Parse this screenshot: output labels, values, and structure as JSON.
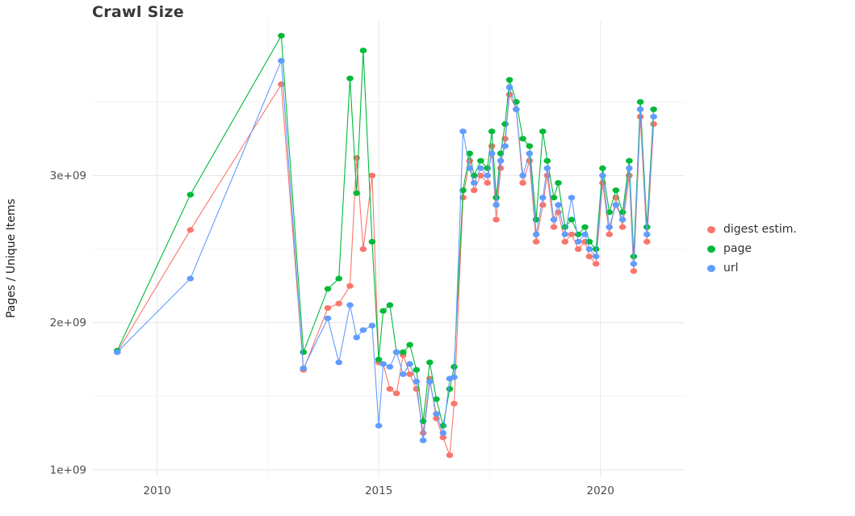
{
  "title": "Crawl Size",
  "legend_title": "",
  "chart_data": {
    "type": "line",
    "markers": true,
    "title": "Crawl Size",
    "xlabel": "",
    "ylabel": "Pages / Unique Items",
    "xlim": [
      2008.55,
      2021.9
    ],
    "ylim_billions": [
      0.95,
      4.05
    ],
    "y_unit": 1000000000,
    "x_ticks": [
      2010,
      2015,
      2020
    ],
    "x_tick_labels": [
      "2010",
      "2015",
      "2020"
    ],
    "y_ticks_billions": [
      1,
      2,
      3
    ],
    "y_tick_labels": [
      "1e+09",
      "2e+09",
      "3e+09"
    ],
    "grid": {
      "major_color": "#e7e7e7",
      "minor_color": "#f4f4f4",
      "x_minor": [
        2012.5,
        2017.5
      ],
      "y_minor": [
        1.5,
        2.5,
        3.5
      ]
    },
    "tick_label_color": "#4d4d4d",
    "legend_position": "right",
    "x": [
      2009.1,
      2010.75,
      2012.8,
      2013.3,
      2013.85,
      2014.1,
      2014.35,
      2014.5,
      2014.65,
      2014.85,
      2015.0,
      2015.1,
      2015.25,
      2015.4,
      2015.55,
      2015.7,
      2015.85,
      2016.0,
      2016.15,
      2016.3,
      2016.45,
      2016.6,
      2016.7,
      2016.9,
      2017.05,
      2017.15,
      2017.3,
      2017.45,
      2017.55,
      2017.65,
      2017.75,
      2017.85,
      2017.95,
      2018.1,
      2018.25,
      2018.4,
      2018.55,
      2018.7,
      2018.8,
      2018.95,
      2019.05,
      2019.2,
      2019.35,
      2019.5,
      2019.65,
      2019.75,
      2019.9,
      2020.05,
      2020.2,
      2020.35,
      2020.5,
      2020.65,
      2020.75,
      2020.9,
      2021.05,
      2021.2
    ],
    "series": [
      {
        "name": "digest estim.",
        "color": "#F8766D",
        "values_billions": [
          1.8,
          2.63,
          3.62,
          1.68,
          2.1,
          2.13,
          2.25,
          3.12,
          2.5,
          3.0,
          1.73,
          1.72,
          1.55,
          1.52,
          1.78,
          1.65,
          1.55,
          1.25,
          1.62,
          1.35,
          1.22,
          1.1,
          1.45,
          2.85,
          3.1,
          2.9,
          3.0,
          2.95,
          3.2,
          2.7,
          3.05,
          3.25,
          3.55,
          3.45,
          2.95,
          3.1,
          2.55,
          2.8,
          3.0,
          2.65,
          2.75,
          2.55,
          2.6,
          2.5,
          2.55,
          2.45,
          2.4,
          2.95,
          2.6,
          2.85,
          2.65,
          3.0,
          2.35,
          3.4,
          2.55,
          3.35
        ]
      },
      {
        "name": "page",
        "color": "#00BA38",
        "values_billions": [
          1.81,
          2.87,
          3.95,
          1.8,
          2.23,
          2.3,
          3.66,
          2.88,
          3.85,
          2.55,
          1.75,
          2.08,
          2.12,
          1.8,
          1.8,
          1.85,
          1.68,
          1.33,
          1.73,
          1.48,
          1.3,
          1.55,
          1.7,
          2.9,
          3.15,
          3.0,
          3.1,
          3.05,
          3.3,
          2.85,
          3.15,
          3.35,
          3.65,
          3.5,
          3.25,
          3.2,
          2.7,
          3.3,
          3.1,
          2.85,
          2.95,
          2.65,
          2.7,
          2.6,
          2.65,
          2.55,
          2.5,
          3.05,
          2.75,
          2.9,
          2.75,
          3.1,
          2.45,
          3.5,
          2.65,
          3.45
        ]
      },
      {
        "name": "url",
        "color": "#619CFF",
        "values_billions": [
          1.8,
          2.3,
          3.78,
          1.69,
          2.03,
          1.73,
          2.12,
          1.9,
          1.95,
          1.98,
          1.3,
          1.72,
          1.7,
          1.8,
          1.65,
          1.72,
          1.6,
          1.2,
          1.6,
          1.38,
          1.25,
          1.62,
          1.63,
          3.3,
          3.05,
          2.95,
          3.05,
          3.0,
          3.15,
          2.8,
          3.1,
          3.2,
          3.6,
          3.45,
          3.0,
          3.15,
          2.6,
          2.85,
          3.05,
          2.7,
          2.8,
          2.6,
          2.85,
          2.55,
          2.6,
          2.5,
          2.45,
          3.0,
          2.65,
          2.8,
          2.7,
          3.05,
          2.4,
          3.45,
          2.6,
          3.4
        ]
      }
    ]
  }
}
